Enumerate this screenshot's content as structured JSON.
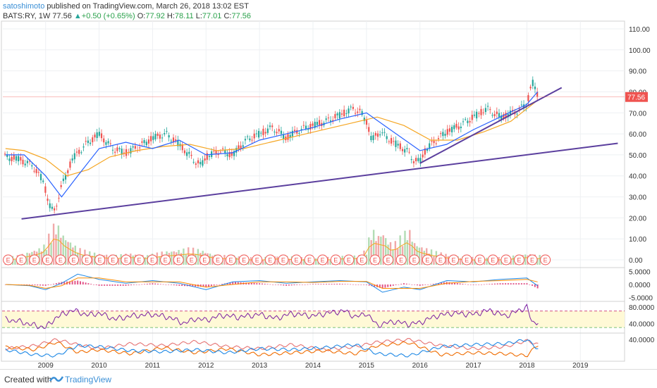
{
  "header": {
    "author": "satoshimoto",
    "published": "published on TradingView.com, March 26, 2018 13:02 EST",
    "symbol": "BATS:RY, 1W",
    "price": "77.56",
    "change_arrow": "▲",
    "change": "+0.50 (+0.65%)",
    "o_label": "O:",
    "o": "77.92",
    "h_label": "H:",
    "h": "78.11",
    "l_label": "L:",
    "l": "77.01",
    "c_label": "C:",
    "c": "77.56"
  },
  "footer": {
    "created_with": "Created with",
    "brand": "TradingView"
  },
  "colors": {
    "up": "#26a69a",
    "down": "#ef5350",
    "ma_fast": "#2962ff",
    "ma_slow": "#f5a623",
    "trendline": "#5b3f9e",
    "rsi": "#7b1fa2",
    "rsi_band": "#fff9d6",
    "last_price": "#ef5350",
    "earnings": "#ef5350",
    "vol_up": "#a5d6a7",
    "vol_down": "#ef9a9a"
  },
  "chart_data": [
    {
      "type": "line",
      "title": "",
      "x_axis": {
        "ticks": [
          "2009",
          "2010",
          "2011",
          "2012",
          "2013",
          "2014",
          "2015",
          "2016",
          "2017",
          "2018",
          "2019"
        ],
        "xlim": [
          2008.2,
          2019.8
        ]
      },
      "y_axis": {
        "ticks": [
          "110.00",
          "100.00",
          "90.00",
          "80.00",
          "70.00",
          "60.00",
          "50.00",
          "40.00",
          "30.00",
          "20.00",
          "10.00",
          "0.00"
        ],
        "ylim": [
          -3,
          113
        ]
      },
      "last_price_label": "77.56",
      "series": [
        {
          "name": "",
          "style": "candles",
          "x": [
            2008.25,
            2008.5,
            2008.75,
            2008.95,
            2009.05,
            2009.15,
            2009.3,
            2009.5,
            2009.75,
            2010.0,
            2010.25,
            2010.5,
            2010.75,
            2011.0,
            2011.25,
            2011.5,
            2011.75,
            2011.9,
            2012.0,
            2012.25,
            2012.5,
            2012.75,
            2013.0,
            2013.25,
            2013.5,
            2013.75,
            2014.0,
            2014.25,
            2014.5,
            2014.75,
            2014.9,
            2015.0,
            2015.1,
            2015.25,
            2015.5,
            2015.75,
            2015.9,
            2016.0,
            2016.1,
            2016.25,
            2016.5,
            2016.75,
            2017.0,
            2017.25,
            2017.5,
            2017.75,
            2018.0,
            2018.05,
            2018.1,
            2018.2
          ],
          "values": [
            49,
            48,
            45,
            38,
            28,
            22,
            35,
            48,
            55,
            60,
            53,
            51,
            54,
            58,
            60,
            55,
            48,
            45,
            49,
            52,
            50,
            57,
            60,
            63,
            58,
            62,
            64,
            66,
            69,
            72,
            70,
            66,
            57,
            61,
            56,
            52,
            47,
            47,
            52,
            56,
            61,
            64,
            68,
            72,
            68,
            70,
            74,
            80,
            85,
            78
          ]
        },
        {
          "name": "",
          "style": "ma_fast",
          "x": [
            2008.25,
            2008.6,
            2009.0,
            2009.3,
            2009.6,
            2010.0,
            2010.5,
            2011.0,
            2011.5,
            2012.0,
            2012.5,
            2013.0,
            2013.5,
            2014.0,
            2014.5,
            2015.0,
            2015.5,
            2016.0,
            2016.5,
            2017.0,
            2017.5,
            2018.0,
            2018.2
          ],
          "values": [
            50,
            50,
            40,
            30,
            40,
            53,
            56,
            53,
            57,
            50,
            51,
            57,
            60,
            63,
            67,
            70,
            61,
            52,
            55,
            62,
            68,
            74,
            80
          ]
        },
        {
          "name": "",
          "style": "ma_slow",
          "x": [
            2008.25,
            2008.6,
            2009.0,
            2009.4,
            2009.8,
            2010.2,
            2010.7,
            2011.2,
            2011.7,
            2012.2,
            2012.7,
            2013.2,
            2013.7,
            2014.2,
            2014.7,
            2015.2,
            2015.7,
            2016.2,
            2016.7,
            2017.2,
            2017.7,
            2018.0,
            2018.2
          ],
          "values": [
            53,
            52,
            48,
            40,
            43,
            49,
            52,
            54,
            55,
            52,
            53,
            56,
            59,
            62,
            65,
            68,
            64,
            57,
            57,
            61,
            66,
            72,
            76
          ]
        }
      ],
      "trendlines": [
        {
          "x": [
            2008.55,
            2019.7
          ],
          "values": [
            19.5,
            55.5
          ]
        },
        {
          "x": [
            2016.0,
            2018.65
          ],
          "values": [
            46,
            82
          ]
        }
      ],
      "grid": true
    },
    {
      "type": "bar",
      "title": "",
      "x": [
        2008.3,
        2008.5,
        2008.7,
        2008.9,
        2009.0,
        2009.1,
        2009.2,
        2009.3,
        2009.4,
        2009.6,
        2009.8,
        2010.0,
        2010.3,
        2010.6,
        2010.9,
        2011.2,
        2011.5,
        2011.7,
        2011.9,
        2012.2,
        2012.5,
        2012.8,
        2013.1,
        2013.4,
        2013.7,
        2014.0,
        2014.3,
        2014.6,
        2014.9,
        2015.0,
        2015.1,
        2015.2,
        2015.3,
        2015.4,
        2015.5,
        2015.6,
        2015.7,
        2015.8,
        2015.9,
        2016.0,
        2016.1,
        2016.3,
        2016.6,
        2016.9,
        2017.2,
        2017.5,
        2017.8,
        2018.0,
        2018.2
      ],
      "values": [
        4,
        5,
        7,
        9,
        11,
        19,
        23,
        17,
        14,
        9,
        7,
        6,
        5,
        6,
        5,
        7,
        8,
        9,
        8,
        5,
        5,
        4,
        4,
        5,
        4,
        4,
        4,
        5,
        5,
        9,
        20,
        15,
        18,
        13,
        11,
        14,
        17,
        19,
        12,
        10,
        9,
        7,
        5,
        4,
        4,
        4,
        5,
        6,
        5
      ],
      "ylim": [
        0,
        25
      ],
      "earnings_marker": "E",
      "earnings_count": 42
    },
    {
      "type": "line",
      "title": "",
      "y_axis": {
        "ticks": [
          "5.0000",
          "0.0000",
          "-5.0000"
        ],
        "ylim": [
          -6,
          6
        ]
      },
      "series": [
        {
          "name": "",
          "style": "macd",
          "x": [
            2008.25,
            2008.7,
            2009.0,
            2009.3,
            2009.6,
            2010.0,
            2010.5,
            2011.0,
            2011.5,
            2012.0,
            2012.5,
            2013.0,
            2013.5,
            2014.0,
            2014.5,
            2015.0,
            2015.3,
            2015.7,
            2016.0,
            2016.5,
            2017.0,
            2017.5,
            2018.0,
            2018.2
          ],
          "values": [
            0,
            -0.5,
            -2,
            0.5,
            4,
            2,
            0.5,
            1.5,
            0.5,
            -2,
            1,
            1.5,
            0.5,
            1,
            1.5,
            1,
            -3,
            -1,
            -2,
            1.5,
            1,
            2,
            2.5,
            -0.5
          ]
        },
        {
          "name": "",
          "style": "signal",
          "x": [
            2008.25,
            2008.7,
            2009.0,
            2009.3,
            2009.6,
            2010.0,
            2010.5,
            2011.0,
            2011.5,
            2012.0,
            2012.5,
            2013.0,
            2013.5,
            2014.0,
            2014.5,
            2015.0,
            2015.3,
            2015.7,
            2016.0,
            2016.5,
            2017.0,
            2017.5,
            2018.0,
            2018.2
          ],
          "values": [
            0,
            -0.3,
            -1.5,
            -0.5,
            2.5,
            2.5,
            1,
            1,
            1,
            -1,
            0,
            1,
            1,
            0.8,
            1.2,
            1.2,
            -1.5,
            -1.5,
            -1.5,
            0.5,
            1.2,
            1.5,
            2,
            1
          ]
        }
      ]
    },
    {
      "type": "line",
      "title": "",
      "y_axis": {
        "ticks": [
          "80.0000",
          "40.0000"
        ],
        "ylim": [
          20,
          90
        ],
        "band": [
          30,
          70
        ]
      },
      "series": [
        {
          "name": "",
          "style": "rsi",
          "x": [
            2008.25,
            2008.5,
            2008.8,
            2009.0,
            2009.2,
            2009.5,
            2009.8,
            2010.0,
            2010.3,
            2010.6,
            2011.0,
            2011.3,
            2011.6,
            2011.8,
            2012.0,
            2012.3,
            2012.6,
            2013.0,
            2013.3,
            2013.6,
            2014.0,
            2014.3,
            2014.6,
            2014.8,
            2015.0,
            2015.2,
            2015.5,
            2015.8,
            2016.0,
            2016.3,
            2016.6,
            2017.0,
            2017.3,
            2017.6,
            2017.9,
            2018.0,
            2018.1,
            2018.2
          ],
          "values": [
            50,
            45,
            35,
            30,
            55,
            72,
            60,
            65,
            50,
            58,
            62,
            55,
            40,
            52,
            48,
            60,
            55,
            62,
            52,
            64,
            58,
            66,
            70,
            55,
            65,
            35,
            45,
            38,
            42,
            58,
            65,
            62,
            72,
            58,
            74,
            80,
            40,
            45
          ]
        }
      ]
    },
    {
      "type": "line",
      "title": "",
      "y_axis": {
        "ticks": [
          "40.0000"
        ],
        "ylim": [
          0,
          50
        ]
      },
      "series": [
        {
          "name": "",
          "style": "osc_red",
          "x": [
            2008.25,
            2008.8,
            2009.2,
            2009.6,
            2010.0,
            2010.6,
            2011.2,
            2011.8,
            2012.4,
            2013.0,
            2013.6,
            2014.2,
            2014.8,
            2015.2,
            2015.8,
            2016.4,
            2017.0,
            2017.6,
            2018.0,
            2018.2
          ],
          "values": [
            22,
            28,
            40,
            30,
            22,
            32,
            28,
            36,
            26,
            22,
            30,
            20,
            26,
            35,
            40,
            28,
            22,
            26,
            38,
            30
          ]
        },
        {
          "name": "",
          "style": "osc_orange",
          "x": [
            2008.25,
            2008.8,
            2009.2,
            2009.6,
            2010.0,
            2010.6,
            2011.2,
            2011.8,
            2012.4,
            2013.0,
            2013.6,
            2014.2,
            2014.8,
            2015.2,
            2015.8,
            2016.4,
            2017.0,
            2017.6,
            2018.0,
            2018.2
          ],
          "values": [
            25,
            20,
            35,
            15,
            20,
            12,
            24,
            14,
            22,
            10,
            14,
            18,
            12,
            28,
            34,
            10,
            14,
            12,
            8,
            30
          ]
        },
        {
          "name": "",
          "style": "osc_blue",
          "x": [
            2008.25,
            2008.8,
            2009.2,
            2009.6,
            2010.0,
            2010.6,
            2011.2,
            2011.8,
            2012.4,
            2013.0,
            2013.6,
            2014.2,
            2014.8,
            2015.2,
            2015.8,
            2016.4,
            2017.0,
            2017.6,
            2018.0,
            2018.2
          ],
          "values": [
            20,
            10,
            8,
            28,
            26,
            18,
            16,
            20,
            14,
            22,
            20,
            24,
            30,
            12,
            8,
            26,
            30,
            32,
            40,
            22
          ]
        }
      ]
    }
  ]
}
